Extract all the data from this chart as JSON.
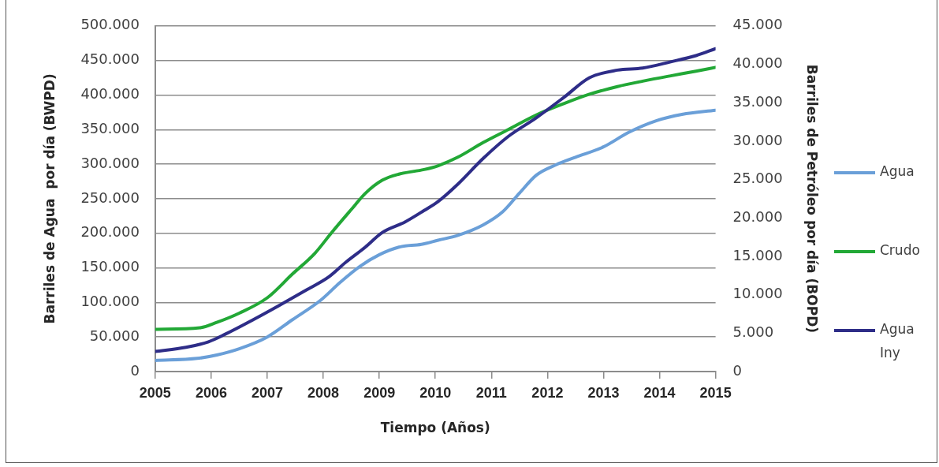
{
  "chart_data": {
    "type": "line",
    "xlabel": "Tiempo (Años)",
    "ylabel": "Barriles de Agua  por día (BWPD)",
    "y2label": "Barriles de Petróleo por día (BOPD)",
    "xlim": [
      2005,
      2015
    ],
    "xticks": [
      2005,
      2006,
      2007,
      2008,
      2009,
      2010,
      2011,
      2012,
      2013,
      2014,
      2015
    ],
    "ylim": [
      0,
      500000
    ],
    "yticks": [
      0,
      {
        "value": 50000,
        "label": "50.000"
      },
      {
        "value": 100000,
        "label": "100.000"
      },
      {
        "value": 150000,
        "label": "150.000"
      },
      {
        "value": 200000,
        "label": "200.000"
      },
      {
        "value": 250000,
        "label": "250.000"
      },
      {
        "value": 300000,
        "label": "300.000"
      },
      {
        "value": 350000,
        "label": "350.000"
      },
      {
        "value": 400000,
        "label": "400.000"
      },
      {
        "value": 450000,
        "label": "450.000"
      },
      {
        "value": 500000,
        "label": "500.000"
      }
    ],
    "y2lim": [
      0,
      45000
    ],
    "y2ticks": [
      0,
      {
        "value": 5000,
        "label": "5.000"
      },
      {
        "value": 10000,
        "label": "10.000"
      },
      {
        "value": 15000,
        "label": "15.000"
      },
      {
        "value": 20000,
        "label": "20.000"
      },
      {
        "value": 25000,
        "label": "25.000"
      },
      {
        "value": 30000,
        "label": "30.000"
      },
      {
        "value": 35000,
        "label": "35.000"
      },
      {
        "value": 40000,
        "label": "40.000"
      },
      {
        "value": 45000,
        "label": "45.000"
      }
    ],
    "grid": "y",
    "legend": "right",
    "series": [
      {
        "name": "Agua",
        "color": "#6a9fd8",
        "x": [
          2005,
          2005.75,
          2006.1,
          2006.5,
          2007,
          2007.45,
          2007.95,
          2008.3,
          2008.65,
          2009,
          2009.35,
          2009.75,
          2010.05,
          2010.4,
          2010.85,
          2011.2,
          2011.5,
          2011.8,
          2012.15,
          2012.5,
          2013,
          2013.45,
          2013.95,
          2014.4,
          2015
        ],
        "values": [
          16000,
          19000,
          24000,
          33000,
          50000,
          75000,
          103000,
          129000,
          152000,
          169000,
          180000,
          184000,
          190000,
          197000,
          212000,
          231000,
          258000,
          284000,
          299000,
          310000,
          325000,
          346000,
          363000,
          372000,
          378000
        ]
      },
      {
        "name": "Crudo",
        "color": "#22a836",
        "axis": "y2",
        "x": [
          2005,
          2005.8,
          2006.1,
          2006.5,
          2007,
          2007.45,
          2007.85,
          2008.15,
          2008.5,
          2008.75,
          2009.05,
          2009.35,
          2009.8,
          2010.05,
          2010.4,
          2010.85,
          2011.3,
          2011.8,
          2012.3,
          2012.75,
          2013.25,
          2013.7,
          2014.2,
          2014.65,
          2015
        ],
        "values": [
          5500,
          5700,
          6400,
          7600,
          9600,
          12700,
          15400,
          18100,
          21100,
          23200,
          24900,
          25700,
          26300,
          26800,
          27900,
          29800,
          31500,
          33400,
          34900,
          36100,
          37100,
          37800,
          38500,
          39100,
          39600
        ]
      },
      {
        "name": "Agua Iny",
        "color": "#2e2d88",
        "x": [
          2005,
          2005.55,
          2005.95,
          2006.25,
          2006.75,
          2007.2,
          2007.7,
          2008.1,
          2008.4,
          2008.75,
          2009.05,
          2009.45,
          2009.8,
          2010.05,
          2010.4,
          2010.85,
          2011.3,
          2011.8,
          2012.3,
          2012.75,
          2013.25,
          2013.7,
          2014.2,
          2014.65,
          2015
        ],
        "values": [
          29000,
          35000,
          43000,
          54000,
          75000,
          95000,
          118000,
          137000,
          158000,
          180000,
          201000,
          216000,
          233000,
          246000,
          271000,
          308000,
          340000,
          367000,
          397000,
          425000,
          436000,
          439000,
          448000,
          457000,
          467000
        ]
      }
    ]
  }
}
